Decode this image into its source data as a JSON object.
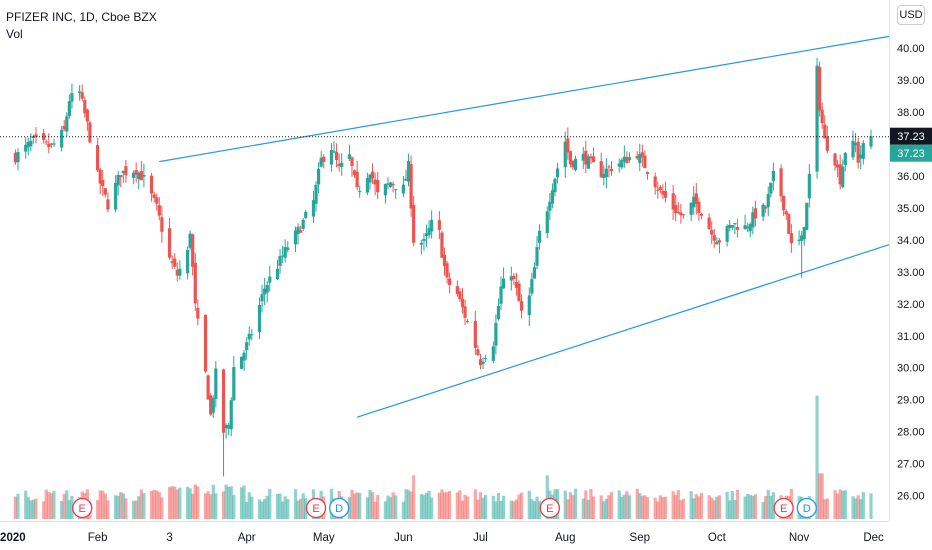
{
  "legend": {
    "symbol_line": "PFIZER INC, 1D, Cboe BZX",
    "volume_label": "Vol"
  },
  "currency_button": "USD",
  "colors": {
    "up": "#26a69a",
    "down": "#ef5350",
    "trendline": "#2196f3",
    "price_label_dark": "#131722",
    "price_label_up": "#26a69a"
  },
  "chart_data": {
    "type": "candlestick",
    "title": "PFIZER INC, 1D, Cboe BZX",
    "xlabel": "",
    "ylabel": "",
    "x_ticks": [
      "2020",
      "Feb",
      "3",
      "Apr",
      "May",
      "Jun",
      "Jul",
      "Aug",
      "Sep",
      "Oct",
      "Nov",
      "Dec"
    ],
    "y_ticks": [
      26.0,
      27.0,
      28.0,
      29.0,
      30.0,
      31.0,
      32.0,
      33.0,
      34.0,
      35.0,
      36.0,
      37.0,
      38.0,
      39.0,
      40.0
    ],
    "ylim": [
      25.35,
      41.2
    ],
    "xlim": [
      "2019-12-27",
      "2020-12-07"
    ],
    "last_price": 37.23,
    "last_price_labels": [
      "37.23",
      "37.23"
    ],
    "reference_line": 37.23,
    "trendlines": [
      {
        "from": [
          "2020-02-27",
          36.45
        ],
        "to": [
          "2020-12-07",
          40.37
        ]
      },
      {
        "from": [
          "2020-05-14",
          28.45
        ],
        "to": [
          "2020-12-07",
          33.85
        ]
      }
    ],
    "close_anchors": [
      [
        "2020-01-02",
        36.6
      ],
      [
        "2020-01-09",
        37.1
      ],
      [
        "2020-01-16",
        36.9
      ],
      [
        "2020-01-21",
        37.4
      ],
      [
        "2020-01-23",
        38.4
      ],
      [
        "2020-01-27",
        38.6
      ],
      [
        "2020-01-30",
        37.6
      ],
      [
        "2020-02-03",
        36.0
      ],
      [
        "2020-02-07",
        35.1
      ],
      [
        "2020-02-12",
        36.1
      ],
      [
        "2020-02-18",
        36.2
      ],
      [
        "2020-02-21",
        35.9
      ],
      [
        "2020-02-26",
        35.0
      ],
      [
        "2020-03-02",
        33.4
      ],
      [
        "2020-03-05",
        32.9
      ],
      [
        "2020-03-09",
        33.6
      ],
      [
        "2020-03-10",
        34.3
      ],
      [
        "2020-03-12",
        31.9
      ],
      [
        "2020-03-16",
        29.8
      ],
      [
        "2020-03-18",
        28.5
      ],
      [
        "2020-03-20",
        29.8
      ],
      [
        "2020-03-23",
        28.0
      ],
      [
        "2020-03-25",
        28.2
      ],
      [
        "2020-03-27",
        30.0
      ],
      [
        "2020-03-31",
        30.5
      ],
      [
        "2020-04-03",
        31.1
      ],
      [
        "2020-04-08",
        32.5
      ],
      [
        "2020-04-13",
        33.2
      ],
      [
        "2020-04-17",
        33.8
      ],
      [
        "2020-04-22",
        34.4
      ],
      [
        "2020-04-27",
        35.2
      ],
      [
        "2020-04-30",
        36.5
      ],
      [
        "2020-05-04",
        36.9
      ],
      [
        "2020-05-07",
        36.2
      ],
      [
        "2020-05-11",
        36.6
      ],
      [
        "2020-05-14",
        35.5
      ],
      [
        "2020-05-19",
        36.2
      ],
      [
        "2020-05-22",
        35.4
      ],
      [
        "2020-05-27",
        35.8
      ],
      [
        "2020-06-01",
        35.6
      ],
      [
        "2020-06-03",
        36.3
      ],
      [
        "2020-06-05",
        34.0
      ],
      [
        "2020-06-09",
        33.9
      ],
      [
        "2020-06-12",
        34.5
      ],
      [
        "2020-06-15",
        34.2
      ],
      [
        "2020-06-16",
        33.6
      ],
      [
        "2020-06-18",
        32.7
      ],
      [
        "2020-06-22",
        32.3
      ],
      [
        "2020-06-26",
        31.4
      ],
      [
        "2020-07-01",
        30.2
      ],
      [
        "2020-07-06",
        30.8
      ],
      [
        "2020-07-09",
        32.5
      ],
      [
        "2020-07-13",
        33.0
      ],
      [
        "2020-07-15",
        32.4
      ],
      [
        "2020-07-17",
        31.7
      ],
      [
        "2020-07-20",
        32.2
      ],
      [
        "2020-07-22",
        33.1
      ],
      [
        "2020-07-24",
        34.2
      ],
      [
        "2020-07-27",
        35.0
      ],
      [
        "2020-07-29",
        35.7
      ],
      [
        "2020-08-03",
        37.1
      ],
      [
        "2020-08-05",
        36.4
      ],
      [
        "2020-08-10",
        36.6
      ],
      [
        "2020-08-17",
        36.1
      ],
      [
        "2020-08-24",
        36.4
      ],
      [
        "2020-08-31",
        36.7
      ],
      [
        "2020-09-04",
        36.2
      ],
      [
        "2020-09-09",
        35.5
      ],
      [
        "2020-09-14",
        35.0
      ],
      [
        "2020-09-18",
        34.7
      ],
      [
        "2020-09-22",
        35.2
      ],
      [
        "2020-09-25",
        34.9
      ],
      [
        "2020-09-29",
        34.2
      ],
      [
        "2020-10-02",
        34.0
      ],
      [
        "2020-10-07",
        34.5
      ],
      [
        "2020-10-12",
        34.4
      ],
      [
        "2020-10-16",
        34.8
      ],
      [
        "2020-10-20",
        35.0
      ],
      [
        "2020-10-23",
        36.0
      ],
      [
        "2020-10-26",
        35.4
      ],
      [
        "2020-10-28",
        34.8
      ],
      [
        "2020-10-30",
        33.8
      ],
      [
        "2020-11-03",
        34.0
      ],
      [
        "2020-11-05",
        35.1
      ],
      [
        "2020-11-06",
        36.0
      ],
      [
        "2020-11-09",
        39.3
      ],
      [
        "2020-11-10",
        38.2
      ],
      [
        "2020-11-12",
        37.1
      ],
      [
        "2020-11-16",
        36.5
      ],
      [
        "2020-11-18",
        35.9
      ],
      [
        "2020-11-20",
        36.8
      ],
      [
        "2020-11-24",
        37.0
      ],
      [
        "2020-11-25",
        36.5
      ],
      [
        "2020-11-27",
        36.9
      ],
      [
        "2020-11-30",
        37.23
      ]
    ],
    "events": [
      {
        "label": "E",
        "date": "2020-01-28"
      },
      {
        "label": "E",
        "date": "2020-04-28"
      },
      {
        "label": "D",
        "date": "2020-05-07"
      },
      {
        "label": "E",
        "date": "2020-07-28"
      },
      {
        "label": "E",
        "date": "2020-10-27"
      },
      {
        "label": "D",
        "date": "2020-11-05"
      }
    ]
  }
}
